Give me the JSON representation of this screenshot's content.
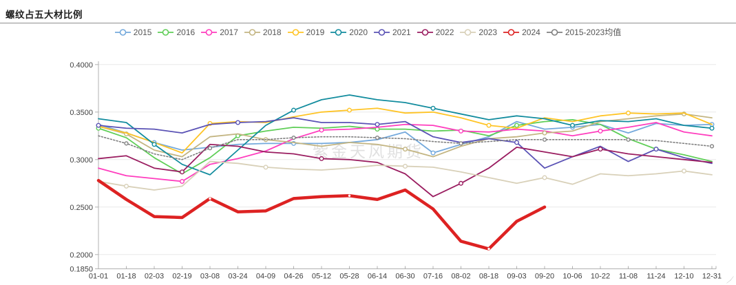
{
  "title": "螺纹占五大材比例",
  "watermark": "紫金天风期货",
  "y_axis": {
    "tick_labels": [
      "0.4000",
      "0.3500",
      "0.3000",
      "0.2500",
      "0.2000",
      "0.1850"
    ],
    "tick_values": [
      0.4,
      0.35,
      0.3,
      0.25,
      0.2,
      0.185
    ]
  },
  "chart_data": {
    "type": "line",
    "title": "螺纹占五大材比例",
    "categories": [
      "01-01",
      "01-18",
      "02-03",
      "02-19",
      "03-08",
      "03-24",
      "04-09",
      "04-26",
      "05-12",
      "05-28",
      "06-14",
      "06-30",
      "07-16",
      "08-02",
      "08-18",
      "09-03",
      "09-20",
      "10-06",
      "10-22",
      "11-08",
      "11-24",
      "12-10",
      "12-31"
    ],
    "ylim": [
      0.185,
      0.4
    ],
    "ylabel": "",
    "xlabel": "",
    "grid": "horizontal",
    "legend_position": "top",
    "series": [
      {
        "name": "2015",
        "color": "#74a9dc",
        "line_width": 1.8,
        "dash": null,
        "values": [
          0.337,
          0.328,
          0.318,
          0.31,
          0.313,
          0.316,
          0.317,
          0.317,
          0.317,
          0.318,
          0.321,
          0.329,
          0.307,
          0.316,
          0.324,
          0.34,
          0.332,
          0.334,
          0.337,
          0.328,
          0.338,
          0.336,
          0.337
        ]
      },
      {
        "name": "2016",
        "color": "#5fce57",
        "line_width": 1.8,
        "dash": null,
        "values": [
          0.333,
          0.323,
          0.302,
          0.285,
          0.302,
          0.325,
          0.33,
          0.334,
          0.333,
          0.335,
          0.332,
          0.332,
          0.33,
          0.331,
          0.325,
          0.336,
          0.34,
          0.342,
          0.337,
          0.322,
          0.311,
          0.305,
          0.298
        ]
      },
      {
        "name": "2017",
        "color": "#ff3dbe",
        "line_width": 1.8,
        "dash": null,
        "values": [
          0.291,
          0.283,
          0.28,
          0.277,
          0.295,
          0.301,
          0.309,
          0.322,
          0.331,
          0.332,
          0.334,
          0.337,
          0.336,
          0.33,
          0.329,
          0.332,
          0.33,
          0.325,
          0.33,
          0.334,
          0.339,
          0.329,
          0.325
        ]
      },
      {
        "name": "2018",
        "color": "#c3b582",
        "line_width": 1.8,
        "dash": null,
        "values": [
          0.335,
          0.327,
          0.31,
          0.303,
          0.324,
          0.327,
          0.321,
          0.318,
          0.314,
          0.318,
          0.316,
          0.311,
          0.303,
          0.314,
          0.322,
          0.324,
          0.328,
          0.33,
          0.34,
          0.343,
          0.346,
          0.348,
          0.344
        ]
      },
      {
        "name": "2019",
        "color": "#ffc425",
        "line_width": 1.8,
        "dash": null,
        "values": [
          0.335,
          0.328,
          0.318,
          0.307,
          0.338,
          0.34,
          0.339,
          0.345,
          0.35,
          0.352,
          0.354,
          0.349,
          0.35,
          0.344,
          0.336,
          0.333,
          0.344,
          0.34,
          0.346,
          0.349,
          0.348,
          0.349,
          0.337
        ]
      },
      {
        "name": "2020",
        "color": "#128c9e",
        "line_width": 1.8,
        "dash": null,
        "values": [
          0.343,
          0.339,
          0.316,
          0.295,
          0.284,
          0.31,
          0.336,
          0.352,
          0.363,
          0.368,
          0.363,
          0.36,
          0.354,
          0.348,
          0.342,
          0.346,
          0.343,
          0.336,
          0.341,
          0.34,
          0.343,
          0.336,
          0.333
        ]
      },
      {
        "name": "2021",
        "color": "#5a52b5",
        "line_width": 1.8,
        "dash": null,
        "values": [
          0.336,
          0.333,
          0.332,
          0.328,
          0.337,
          0.339,
          0.34,
          0.344,
          0.339,
          0.339,
          0.337,
          0.34,
          0.324,
          0.318,
          0.322,
          0.318,
          0.291,
          0.303,
          0.314,
          0.298,
          0.311,
          0.302,
          0.296
        ]
      },
      {
        "name": "2022",
        "color": "#9a1d60",
        "line_width": 1.8,
        "dash": null,
        "values": [
          0.301,
          0.304,
          0.291,
          0.287,
          0.316,
          0.314,
          0.308,
          0.306,
          0.301,
          0.3,
          0.297,
          0.285,
          0.261,
          0.275,
          0.291,
          0.313,
          0.308,
          0.303,
          0.311,
          0.306,
          0.303,
          0.3,
          0.297
        ]
      },
      {
        "name": "2023",
        "color": "#d8d0b8",
        "line_width": 1.8,
        "dash": null,
        "values": [
          0.277,
          0.272,
          0.268,
          0.272,
          0.298,
          0.296,
          0.292,
          0.29,
          0.289,
          0.291,
          0.294,
          0.293,
          0.292,
          0.287,
          0.281,
          0.275,
          0.281,
          0.274,
          0.285,
          0.283,
          0.285,
          0.288,
          0.284
        ]
      },
      {
        "name": "2024",
        "color": "#dd2222",
        "line_width": 4.5,
        "dash": null,
        "values": [
          0.278,
          0.258,
          0.24,
          0.239,
          0.259,
          0.245,
          0.246,
          0.259,
          0.261,
          0.262,
          0.258,
          0.268,
          0.248,
          0.214,
          0.206,
          0.235,
          0.25,
          null,
          null,
          null,
          null,
          null,
          null
        ]
      },
      {
        "name": "2015-2023均值",
        "color": "#7f7f7f",
        "line_width": 1.6,
        "dash": "2,2.5",
        "values": [
          0.325,
          0.317,
          0.306,
          0.3,
          0.312,
          0.321,
          0.321,
          0.323,
          0.324,
          0.324,
          0.323,
          0.322,
          0.319,
          0.317,
          0.319,
          0.321,
          0.321,
          0.321,
          0.321,
          0.321,
          0.32,
          0.317,
          0.314
        ]
      }
    ]
  }
}
